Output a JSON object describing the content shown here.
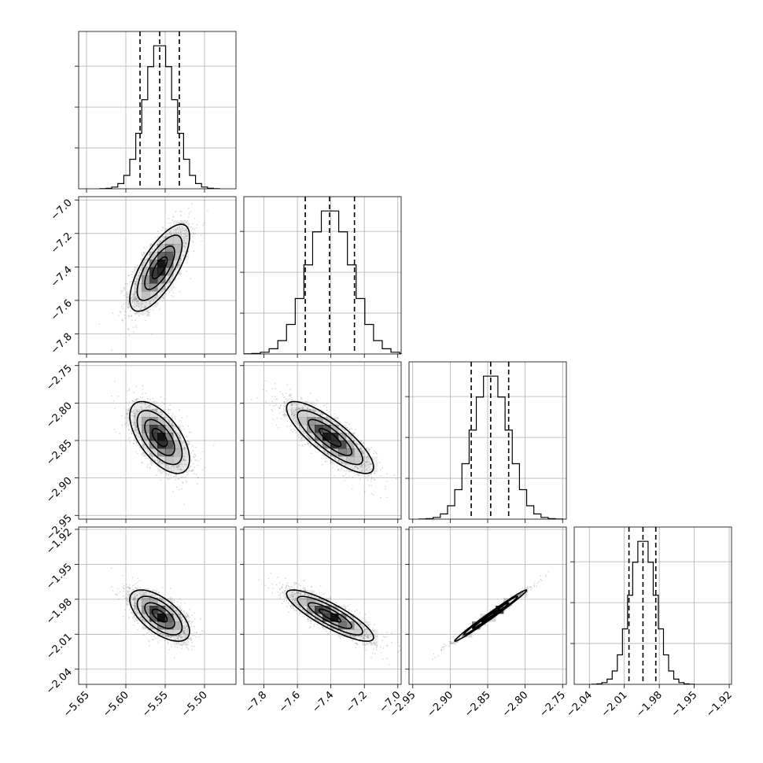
{
  "chart_data": {
    "type": "corner",
    "parameters": [
      {
        "range": [
          -5.66,
          -5.46
        ],
        "ticks": [
          -5.65,
          -5.6,
          -5.55,
          -5.5
        ],
        "tick_labels": [
          "−5.65",
          "−5.60",
          "−5.55",
          "−5.50"
        ],
        "quantiles": [
          -5.582,
          -5.557,
          -5.532
        ],
        "mean": -5.557,
        "sd": 0.019
      },
      {
        "range": [
          -7.92,
          -6.98
        ],
        "ticks": [
          -7.8,
          -7.6,
          -7.4,
          -7.2,
          -7.0
        ],
        "tick_labels": [
          "−7.8",
          "−7.6",
          "−7.4",
          "−7.2",
          "−7.0"
        ],
        "quantiles": [
          -7.553,
          -7.408,
          -7.259
        ],
        "mean": -7.405,
        "sd": 0.13
      },
      {
        "range": [
          -2.955,
          -2.745
        ],
        "ticks": [
          -2.95,
          -2.9,
          -2.85,
          -2.8,
          -2.75
        ],
        "tick_labels": [
          "−2.95",
          "−2.90",
          "−2.85",
          "−2.80",
          "−2.75"
        ],
        "quantiles": [
          -2.872,
          -2.846,
          -2.822
        ],
        "mean": -2.846,
        "sd": 0.024
      },
      {
        "range": [
          -2.053,
          -1.918
        ],
        "ticks": [
          -2.04,
          -2.01,
          -1.98,
          -1.95,
          -1.92
        ],
        "tick_labels": [
          "−2.04",
          "−2.01",
          "−1.98",
          "−1.95",
          "−1.92"
        ],
        "quantiles": [
          -2.006,
          -1.994,
          -1.983
        ],
        "mean": -1.994,
        "sd": 0.011
      }
    ],
    "correlations": {
      "1-0": 0.72,
      "2-0": -0.6,
      "2-1": -0.82,
      "3-0": -0.62,
      "3-1": -0.85,
      "3-2": 0.99
    },
    "histogram_bins": 20,
    "contour_levels_sigma": [
      0.5,
      1.0,
      1.5,
      2.0
    ],
    "gridlines": true,
    "colors": {
      "points": "#7f7f7f",
      "density": "#000000",
      "grid": "#b0b0b0"
    }
  }
}
